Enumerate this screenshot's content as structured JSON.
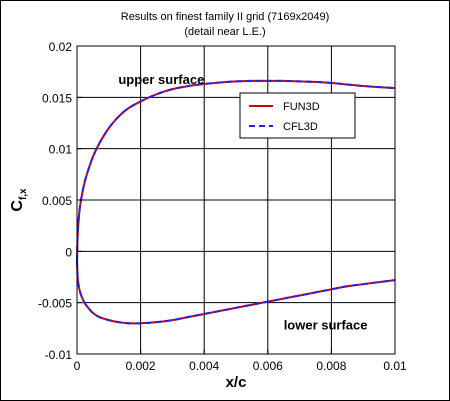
{
  "chart_data": {
    "type": "line",
    "title": "Results on finest family II grid (7169x2049)",
    "subtitle": "(detail near L.E.)",
    "xlabel": "x/c",
    "ylabel": "C",
    "ylabel_subscript": "f,x",
    "xlim": [
      0,
      0.01
    ],
    "ylim": [
      -0.01,
      0.02
    ],
    "xticks": [
      {
        "value": 0,
        "label": "0"
      },
      {
        "value": 0.002,
        "label": "0.002"
      },
      {
        "value": 0.004,
        "label": "0.004"
      },
      {
        "value": 0.006,
        "label": "0.006"
      },
      {
        "value": 0.008,
        "label": "0.008"
      },
      {
        "value": 0.01,
        "label": "0.01"
      }
    ],
    "yticks": [
      {
        "value": -0.01,
        "label": "-0.01"
      },
      {
        "value": -0.005,
        "label": "-0.005"
      },
      {
        "value": 0,
        "label": "0"
      },
      {
        "value": 0.005,
        "label": "0.005"
      },
      {
        "value": 0.01,
        "label": "0.01"
      },
      {
        "value": 0.015,
        "label": "0.015"
      },
      {
        "value": 0.02,
        "label": "0.02"
      }
    ],
    "grid": true,
    "legend_position": "upper-right",
    "series": [
      {
        "name": "FUN3D",
        "color": "#cc0000",
        "dash": "solid",
        "upper": [
          [
            0,
            -0.001
          ],
          [
            2e-05,
            0.0015
          ],
          [
            5e-05,
            0.003
          ],
          [
            0.0001,
            0.0045
          ],
          [
            0.0002,
            0.0062
          ],
          [
            0.0003,
            0.0074
          ],
          [
            0.0005,
            0.0092
          ],
          [
            0.0007,
            0.0105
          ],
          [
            0.001,
            0.012
          ],
          [
            0.0013,
            0.0131
          ],
          [
            0.0016,
            0.0139
          ],
          [
            0.002,
            0.0146
          ],
          [
            0.0025,
            0.0153
          ],
          [
            0.003,
            0.0158
          ],
          [
            0.0035,
            0.0161
          ],
          [
            0.004,
            0.0163
          ],
          [
            0.0045,
            0.01645
          ],
          [
            0.005,
            0.01655
          ],
          [
            0.0055,
            0.0166
          ],
          [
            0.006,
            0.0166
          ],
          [
            0.0065,
            0.0166
          ],
          [
            0.007,
            0.01655
          ],
          [
            0.0075,
            0.0165
          ],
          [
            0.008,
            0.0164
          ],
          [
            0.0085,
            0.01625
          ],
          [
            0.009,
            0.0161
          ],
          [
            0.0095,
            0.016
          ],
          [
            0.01,
            0.0159
          ]
        ],
        "lower": [
          [
            0,
            -0.001
          ],
          [
            2e-05,
            -0.0025
          ],
          [
            5e-05,
            -0.0033
          ],
          [
            0.0001,
            -0.004
          ],
          [
            0.0002,
            -0.0048
          ],
          [
            0.0003,
            -0.0053
          ],
          [
            0.0005,
            -0.006
          ],
          [
            0.0007,
            -0.0064
          ],
          [
            0.001,
            -0.0067
          ],
          [
            0.0013,
            -0.0069
          ],
          [
            0.0016,
            -0.007
          ],
          [
            0.002,
            -0.007
          ],
          [
            0.0025,
            -0.0069
          ],
          [
            0.003,
            -0.0067
          ],
          [
            0.0035,
            -0.0064
          ],
          [
            0.004,
            -0.0061
          ],
          [
            0.0045,
            -0.0058
          ],
          [
            0.005,
            -0.0055
          ],
          [
            0.0055,
            -0.0052
          ],
          [
            0.006,
            -0.0049
          ],
          [
            0.0065,
            -0.0046
          ],
          [
            0.007,
            -0.0043
          ],
          [
            0.0075,
            -0.004
          ],
          [
            0.008,
            -0.0037
          ],
          [
            0.0085,
            -0.0034
          ],
          [
            0.009,
            -0.0032
          ],
          [
            0.0095,
            -0.003
          ],
          [
            0.01,
            -0.0028
          ]
        ]
      },
      {
        "name": "CFL3D",
        "color": "#2222ee",
        "dash": "dashed",
        "upper": [
          [
            0,
            -0.001
          ],
          [
            2e-05,
            0.0015
          ],
          [
            5e-05,
            0.003
          ],
          [
            0.0001,
            0.0045
          ],
          [
            0.0002,
            0.0062
          ],
          [
            0.0003,
            0.0074
          ],
          [
            0.0005,
            0.0092
          ],
          [
            0.0007,
            0.0105
          ],
          [
            0.001,
            0.012
          ],
          [
            0.0013,
            0.0131
          ],
          [
            0.0016,
            0.0139
          ],
          [
            0.002,
            0.0146
          ],
          [
            0.0025,
            0.0153
          ],
          [
            0.003,
            0.0158
          ],
          [
            0.0035,
            0.0161
          ],
          [
            0.004,
            0.0163
          ],
          [
            0.0045,
            0.01645
          ],
          [
            0.005,
            0.01655
          ],
          [
            0.0055,
            0.0166
          ],
          [
            0.006,
            0.0166
          ],
          [
            0.0065,
            0.0166
          ],
          [
            0.007,
            0.01655
          ],
          [
            0.0075,
            0.0165
          ],
          [
            0.008,
            0.0164
          ],
          [
            0.0085,
            0.01625
          ],
          [
            0.009,
            0.0161
          ],
          [
            0.0095,
            0.016
          ],
          [
            0.01,
            0.0159
          ]
        ],
        "lower": [
          [
            0,
            -0.001
          ],
          [
            2e-05,
            -0.0025
          ],
          [
            5e-05,
            -0.0033
          ],
          [
            0.0001,
            -0.004
          ],
          [
            0.0002,
            -0.0048
          ],
          [
            0.0003,
            -0.0053
          ],
          [
            0.0005,
            -0.006
          ],
          [
            0.0007,
            -0.0064
          ],
          [
            0.001,
            -0.0067
          ],
          [
            0.0013,
            -0.0069
          ],
          [
            0.0016,
            -0.007
          ],
          [
            0.002,
            -0.007
          ],
          [
            0.0025,
            -0.0069
          ],
          [
            0.003,
            -0.0067
          ],
          [
            0.0035,
            -0.0064
          ],
          [
            0.004,
            -0.0061
          ],
          [
            0.0045,
            -0.0058
          ],
          [
            0.005,
            -0.0055
          ],
          [
            0.0055,
            -0.0052
          ],
          [
            0.006,
            -0.0049
          ],
          [
            0.0065,
            -0.0046
          ],
          [
            0.007,
            -0.0043
          ],
          [
            0.0075,
            -0.004
          ],
          [
            0.008,
            -0.0037
          ],
          [
            0.0085,
            -0.0034
          ],
          [
            0.009,
            -0.0032
          ],
          [
            0.0095,
            -0.003
          ],
          [
            0.01,
            -0.0028
          ]
        ]
      }
    ],
    "annotations": [
      {
        "name": "upper-surface-label",
        "text": "upper surface",
        "x": 0.0013,
        "y": 0.0163
      },
      {
        "name": "lower-surface-label",
        "text": "lower surface",
        "x": 0.0065,
        "y": -0.0076
      }
    ]
  }
}
